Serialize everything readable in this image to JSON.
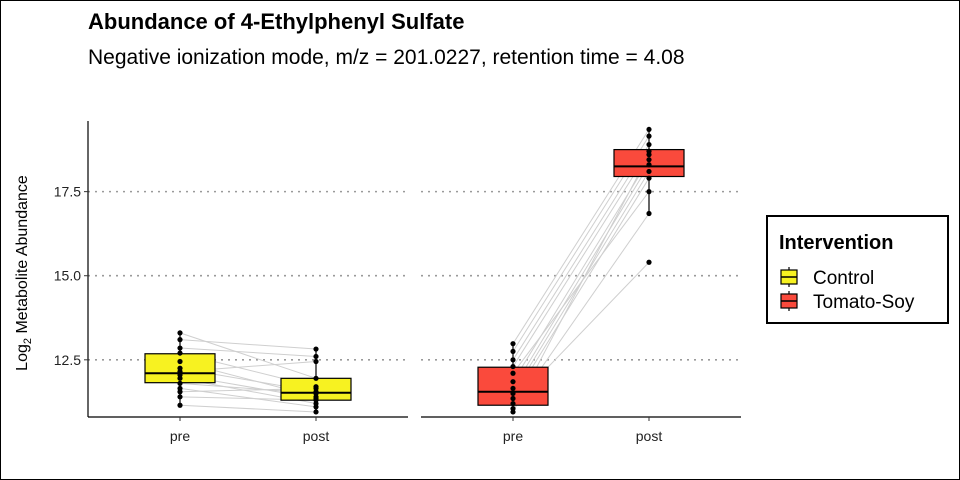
{
  "chart_data": {
    "type": "box",
    "title": "Abundance of 4-Ethylphenyl Sulfate",
    "subtitle": "Negative ionization mode, m/z = 201.0227, retention time = 4.08",
    "ylabel_main": "Log",
    "ylabel_sub": "2",
    "ylabel_rest": " Metabolite Abundance",
    "ylim": [
      10.8,
      19.6
    ],
    "yticks": [
      12.5,
      15.0,
      17.5
    ],
    "ytick_labels": [
      "12.5",
      "15.0",
      "17.5"
    ],
    "grid": "horizontal dotted at y ticks",
    "legend": {
      "title": "Intervention",
      "position": "right",
      "items": [
        {
          "label": "Control",
          "color": "#f7f221"
        },
        {
          "label": "Tomato-Soy",
          "color": "#fa4a3c"
        }
      ]
    },
    "panels": [
      {
        "group": "Control",
        "color": "#f7f221",
        "categories": [
          "pre",
          "post"
        ],
        "boxes": [
          {
            "q1": 11.82,
            "median": 12.1,
            "q3": 12.68,
            "min": 11.15,
            "max": 13.3
          },
          {
            "q1": 11.3,
            "median": 11.52,
            "q3": 11.95,
            "min": 10.95,
            "max": 12.82
          }
        ],
        "pairs": [
          [
            13.3,
            11.95
          ],
          [
            13.1,
            12.82
          ],
          [
            12.85,
            12.6
          ],
          [
            12.7,
            11.7
          ],
          [
            12.45,
            11.4
          ],
          [
            12.25,
            11.55
          ],
          [
            12.15,
            12.45
          ],
          [
            12.05,
            11.35
          ],
          [
            11.95,
            11.2
          ],
          [
            11.8,
            11.5
          ],
          [
            11.65,
            11.1
          ],
          [
            11.55,
            11.65
          ],
          [
            11.4,
            11.3
          ],
          [
            11.15,
            10.95
          ]
        ]
      },
      {
        "group": "Tomato-Soy",
        "color": "#fa4a3c",
        "categories": [
          "pre",
          "post"
        ],
        "boxes": [
          {
            "q1": 11.15,
            "median": 11.55,
            "q3": 12.28,
            "min": 10.95,
            "max": 12.98
          },
          {
            "q1": 17.95,
            "median": 18.25,
            "q3": 18.75,
            "min": 16.85,
            "max": 19.35
          }
        ],
        "pairs": [
          [
            12.98,
            19.35
          ],
          [
            12.75,
            19.15
          ],
          [
            12.5,
            18.9
          ],
          [
            12.3,
            18.7
          ],
          [
            12.1,
            17.5
          ],
          [
            11.85,
            18.45
          ],
          [
            11.65,
            18.3
          ],
          [
            11.5,
            18.1
          ],
          [
            11.35,
            17.9
          ],
          [
            11.2,
            15.4
          ],
          [
            11.05,
            16.85
          ],
          [
            10.95,
            18.6
          ]
        ]
      }
    ]
  }
}
